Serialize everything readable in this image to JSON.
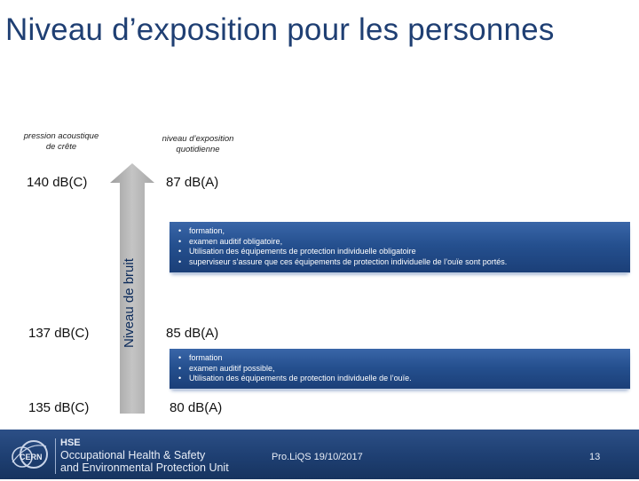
{
  "slide": {
    "title": "Niveau d’exposition pour les personnes"
  },
  "columns": {
    "peak_label": [
      "pression acoustique",
      "de crête"
    ],
    "daily_label": [
      "niveau d’exposition",
      "quotidienne"
    ]
  },
  "levels": {
    "peak": [
      "140 dB(C)",
      "137 dB(C)",
      "135 dB(C)"
    ],
    "daily": [
      "87 dB(A)",
      "85 dB(A)",
      "80 dB(A)"
    ]
  },
  "arrow": {
    "label": "Niveau de bruit"
  },
  "boxes": {
    "level_87": {
      "bullet": "•",
      "items": [
        "formation,",
        "examen auditif obligatoire,",
        "Utilisation des équipements de protection individuelle obligatoire",
        "superviseur s’assure que ces équipements de protection individuelle de l’ouïe sont portés."
      ]
    },
    "level_85": {
      "bullet": "•",
      "items": [
        "formation",
        "examen auditif possible,",
        "Utilisation des équipements de protection individuelle de l’ouïe."
      ]
    }
  },
  "footer": {
    "logo_text": "CERN",
    "hse_title": "HSE",
    "hse_line1": "Occupational Health & Safety",
    "hse_line2": "and Environmental Protection Unit",
    "date_text": "Pro.LiQS 19/10/2017",
    "page_number": "13"
  },
  "colors": {
    "title": "#1f3f73",
    "box_fill": "#25508f",
    "footer_fill": "#1e3f72",
    "arrow_fill": "#b4b4b4"
  }
}
